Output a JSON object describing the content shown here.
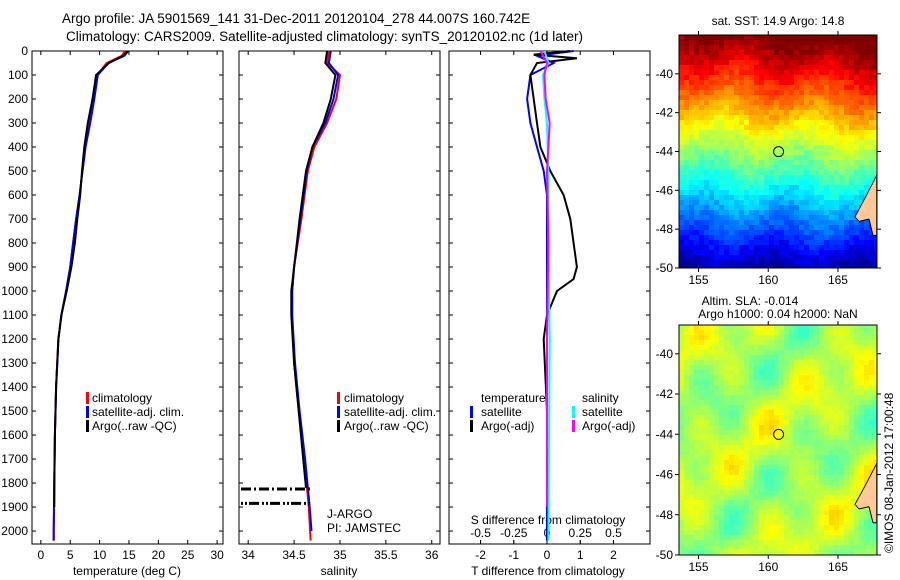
{
  "title": {
    "line1": "Argo profile: JA 5901569_141 31-Dec-2011 20120104_278 44.007S 160.742E",
    "line2": "Climatology: CARS2009. Satellite-adjusted climatology: synTS_20120102.nc (1d later)"
  },
  "colors": {
    "climatology": "#ff0000",
    "satellite": "#0000ff",
    "argo": "#000000",
    "sal_satellite": "#00ffff",
    "sal_argo": "#ff00ff",
    "land": "#ffc896"
  },
  "chart_data": [
    {
      "type": "line",
      "xlabel": "temperature (deg C)",
      "ylabel": "",
      "xlim": [
        -1.5,
        31
      ],
      "ylim": [
        2054,
        0
      ],
      "xticks": [
        0,
        5,
        10,
        15,
        20,
        25,
        30
      ],
      "yticks": [
        0,
        100,
        200,
        300,
        400,
        500,
        600,
        700,
        800,
        900,
        1000,
        1100,
        1200,
        1300,
        1400,
        1500,
        1600,
        1700,
        1800,
        1900,
        2000
      ],
      "legend": [
        "climatology",
        "satellite-adj. clim.",
        "Argo(..raw -QC)"
      ],
      "series": [
        {
          "name": "climatology",
          "depth": [
            0,
            20,
            50,
            100,
            200,
            300,
            400,
            500,
            600,
            700,
            800,
            900,
            1000,
            1100,
            1200,
            1400,
            1600,
            1800,
            2000,
            2040
          ],
          "values": [
            14.3,
            13.8,
            11.2,
            9.6,
            9.0,
            8.3,
            7.6,
            7.1,
            6.6,
            6.0,
            5.5,
            5.0,
            4.3,
            3.5,
            3.0,
            2.6,
            2.4,
            2.3,
            2.2,
            2.2
          ]
        },
        {
          "name": "satellite-adj. clim.",
          "depth": [
            0,
            20,
            50,
            100,
            200,
            300,
            400,
            500,
            600,
            700,
            800,
            900,
            1000,
            1100,
            1200,
            1400,
            1600,
            1800,
            2000,
            2040
          ],
          "values": [
            14.9,
            14.2,
            11.5,
            9.7,
            9.1,
            8.4,
            7.6,
            7.1,
            6.6,
            6.0,
            5.5,
            5.0,
            4.3,
            3.5,
            3.0,
            2.6,
            2.4,
            2.3,
            2.2,
            2.2
          ]
        },
        {
          "name": "Argo(..raw -QC)",
          "depth": [
            0,
            20,
            50,
            100,
            200,
            300,
            400,
            500,
            600,
            700,
            800,
            900,
            1000,
            1100,
            1200,
            1400,
            1600,
            1800,
            1900
          ],
          "values": [
            14.8,
            14.0,
            11.6,
            9.4,
            8.8,
            8.0,
            7.4,
            7.0,
            6.7,
            6.2,
            5.8,
            5.2,
            4.4,
            3.5,
            3.0,
            2.6,
            2.4,
            2.3,
            2.3
          ]
        }
      ]
    },
    {
      "type": "line",
      "xlabel": "salinity",
      "xlim": [
        33.9,
        36.09
      ],
      "ylim": [
        2054,
        0
      ],
      "xticks": [
        34,
        34.5,
        35,
        35.5,
        36
      ],
      "xticklabels": [
        "34",
        "34.5",
        "35",
        "35.5",
        "36"
      ],
      "legend": [
        "climatology",
        "satellite-adj. clim.",
        "Argo(..raw -QC)"
      ],
      "annotations": [
        "J-ARGO",
        "PI: JAMSTEC"
      ],
      "series": [
        {
          "name": "climatology",
          "depth": [
            0,
            50,
            100,
            200,
            300,
            400,
            500,
            700,
            900,
            1000,
            1100,
            1300,
            1500,
            1700,
            1900,
            2040
          ],
          "values": [
            34.88,
            34.86,
            35.0,
            34.96,
            34.86,
            34.72,
            34.65,
            34.58,
            34.5,
            34.48,
            34.48,
            34.5,
            34.55,
            34.61,
            34.66,
            34.68
          ]
        },
        {
          "name": "satellite-adj. clim.",
          "depth": [
            0,
            50,
            100,
            200,
            300,
            400,
            500,
            700,
            900,
            1000,
            1100,
            1300,
            1500,
            1700,
            1900,
            2000
          ],
          "values": [
            34.9,
            34.88,
            34.98,
            34.93,
            34.84,
            34.7,
            34.64,
            34.57,
            34.5,
            34.48,
            34.48,
            34.51,
            34.56,
            34.62,
            34.67,
            34.69
          ]
        },
        {
          "name": "Argo(..raw -QC)",
          "depth": [
            0,
            50,
            100,
            200,
            300,
            400,
            500,
            700,
            900,
            1000,
            1100,
            1300,
            1500,
            1700,
            1820
          ],
          "values": [
            34.86,
            34.84,
            34.95,
            34.9,
            34.82,
            34.7,
            34.63,
            34.56,
            34.5,
            34.47,
            34.47,
            34.5,
            34.55,
            34.6,
            34.63
          ]
        }
      ]
    },
    {
      "type": "line",
      "xlabel": "T difference from climatology",
      "x2label": "S difference from climatology",
      "xlim": [
        -2.95,
        3.1
      ],
      "ylim": [
        2054,
        0
      ],
      "xticks": [
        -2,
        -1,
        0,
        1,
        2
      ],
      "xticklabels": [
        "-2",
        "-1",
        "0",
        "1",
        "2"
      ],
      "x2ticks": [
        -0.5,
        -0.25,
        0,
        0.25,
        0.5
      ],
      "x2ticklabels": [
        "-0.5",
        "-0.25",
        "0",
        "0.25",
        "0.5"
      ],
      "legend_temperature": {
        "title": "temperature",
        "items": [
          "satellite",
          "Argo(-adj)"
        ]
      },
      "legend_salinity": {
        "title": "salinity",
        "items": [
          "satellite",
          "Argo(-adj)"
        ]
      },
      "series": [
        {
          "name": "T satellite",
          "depth": [
            0,
            20,
            50,
            100,
            200,
            300,
            400,
            500,
            600,
            800,
            1000,
            1500,
            2040
          ],
          "values": [
            0.8,
            -0.3,
            0.2,
            -0.5,
            -0.6,
            -0.5,
            -0.3,
            -0.1,
            0,
            0,
            0,
            0,
            0
          ]
        },
        {
          "name": "T Argo(-adj)",
          "depth": [
            0,
            15,
            30,
            50,
            100,
            200,
            300,
            400,
            500,
            600,
            700,
            800,
            900,
            950,
            1000,
            1100,
            1200,
            1500,
            1900
          ],
          "values": [
            0.7,
            -0.4,
            0.9,
            -0.3,
            -0.5,
            -0.4,
            -0.3,
            -0.2,
            0.1,
            0.5,
            0.7,
            0.8,
            0.9,
            0.8,
            0.3,
            0,
            -0.1,
            0,
            0
          ]
        },
        {
          "name": "S satellite",
          "depth": [
            0,
            50,
            100,
            200,
            300,
            500,
            800,
            1200,
            2040
          ],
          "values": [
            -0.02,
            0.01,
            -0.03,
            -0.02,
            0,
            0.01,
            0.01,
            0.02,
            0.01
          ]
        },
        {
          "name": "S Argo(-adj)",
          "depth": [
            0,
            50,
            100,
            200,
            300,
            500,
            800,
            1200,
            1900
          ],
          "values": [
            -0.05,
            0,
            -0.02,
            -0.01,
            0.02,
            0,
            0.01,
            0,
            0
          ]
        }
      ]
    },
    {
      "type": "heatmap",
      "title": "sat. SST: 14.9 Argo: 14.8",
      "xlim": [
        153.6,
        167.8
      ],
      "ylim": [
        -50,
        -38
      ],
      "xticks": [
        155,
        160,
        165
      ],
      "yticks": [
        -40,
        -42,
        -44,
        -46,
        -48,
        -50
      ],
      "marker": {
        "lon": 160.742,
        "lat": -44.007
      }
    },
    {
      "type": "heatmap",
      "title": "Altim. SLA: -0.014",
      "subtitle": "Argo h1000: 0.04 h2000: NaN",
      "xlim": [
        153.6,
        167.8
      ],
      "ylim": [
        -50,
        -38
      ],
      "xticks": [
        155,
        160,
        165
      ],
      "yticks": [
        -40,
        -42,
        -44,
        -46,
        -48,
        -50
      ],
      "marker": {
        "lon": 160.742,
        "lat": -44.007
      }
    }
  ],
  "copyright": "©IMOS 08-Jan-2012 17:00:48"
}
